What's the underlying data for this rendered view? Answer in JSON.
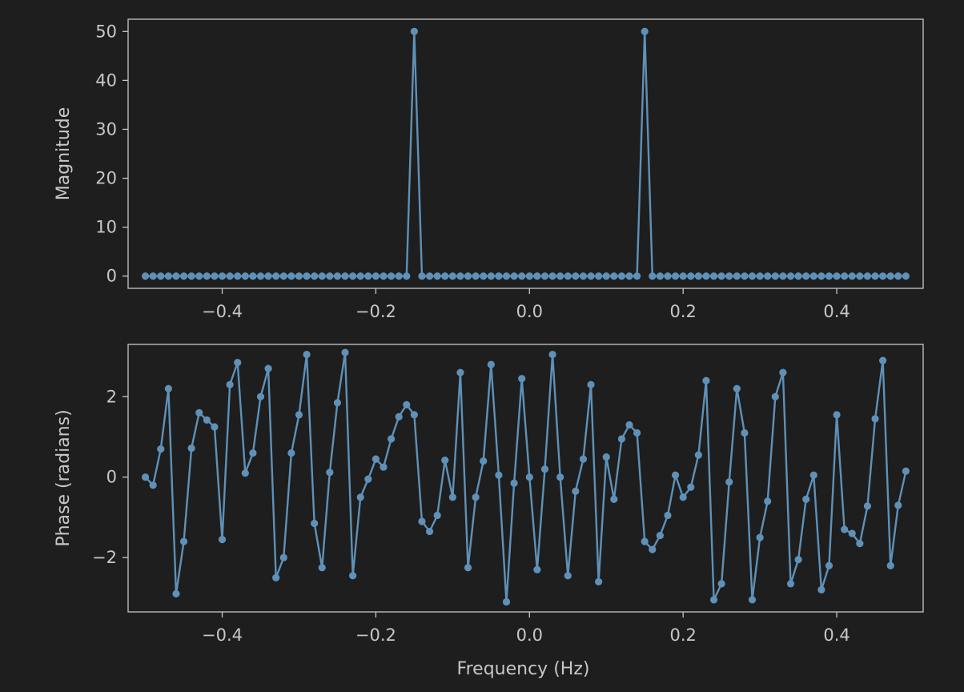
{
  "colors": {
    "background": "#1e1e1e",
    "series": "#5f91b8",
    "axes": "#c7c7c7"
  },
  "chart_data": [
    {
      "type": "line",
      "markers": true,
      "xlabel": "",
      "ylabel": "Magnitude",
      "xlim": [
        -0.5225,
        0.5125
      ],
      "ylim": [
        -2.5,
        52.5
      ],
      "xticks": [
        -0.4,
        -0.2,
        0.0,
        0.2,
        0.4
      ],
      "xtick_labels": [
        "−0.4",
        "−0.2",
        "0.0",
        "0.2",
        "0.4"
      ],
      "yticks": [
        0,
        10,
        20,
        30,
        40,
        50
      ],
      "ytick_labels": [
        "0",
        "10",
        "20",
        "30",
        "40",
        "50"
      ],
      "x_start": -0.5,
      "x_step": 0.01,
      "values": [
        0,
        0,
        0,
        0,
        0,
        0,
        0,
        0,
        0,
        0,
        0,
        0,
        0,
        0,
        0,
        0,
        0,
        0,
        0,
        0,
        0,
        0,
        0,
        0,
        0,
        0,
        0,
        0,
        0,
        0,
        0,
        0,
        0,
        0,
        0,
        50,
        0,
        0,
        0,
        0,
        0,
        0,
        0,
        0,
        0,
        0,
        0,
        0,
        0,
        0,
        0,
        0,
        0,
        0,
        0,
        0,
        0,
        0,
        0,
        0,
        0,
        0,
        0,
        0,
        0,
        50,
        0,
        0,
        0,
        0,
        0,
        0,
        0,
        0,
        0,
        0,
        0,
        0,
        0,
        0,
        0,
        0,
        0,
        0,
        0,
        0,
        0,
        0,
        0,
        0,
        0,
        0,
        0,
        0,
        0,
        0,
        0,
        0,
        0,
        0
      ]
    },
    {
      "type": "line",
      "markers": true,
      "xlabel": "Frequency (Hz)",
      "ylabel": "Phase (radians)",
      "xlim": [
        -0.5225,
        0.5125
      ],
      "ylim": [
        -3.35,
        3.3
      ],
      "xticks": [
        -0.4,
        -0.2,
        0.0,
        0.2,
        0.4
      ],
      "xtick_labels": [
        "−0.4",
        "−0.2",
        "0.0",
        "0.2",
        "0.4"
      ],
      "yticks": [
        -2,
        0,
        2
      ],
      "ytick_labels": [
        "−2",
        "0",
        "2"
      ],
      "x_start": -0.5,
      "x_step": 0.01,
      "values": [
        0.0,
        -0.2,
        0.7,
        2.2,
        -2.9,
        -1.6,
        0.72,
        1.6,
        1.42,
        1.25,
        -1.55,
        2.3,
        2.85,
        0.1,
        0.6,
        2.0,
        2.7,
        -2.5,
        -2.0,
        0.6,
        1.55,
        3.05,
        -1.15,
        -2.25,
        0.12,
        1.85,
        3.1,
        -2.45,
        -0.5,
        -0.05,
        0.45,
        0.25,
        0.95,
        1.5,
        1.8,
        1.55,
        -1.1,
        -1.35,
        -0.95,
        0.42,
        -0.5,
        2.6,
        -2.25,
        -0.5,
        0.4,
        2.8,
        0.05,
        -3.1,
        -0.15,
        2.45,
        0.0,
        -2.3,
        0.2,
        3.05,
        0.0,
        -2.45,
        -0.35,
        0.45,
        2.3,
        -2.6,
        0.5,
        -0.55,
        0.95,
        1.3,
        1.1,
        -1.6,
        -1.8,
        -1.45,
        -0.95,
        0.05,
        -0.5,
        -0.25,
        0.55,
        2.4,
        -3.05,
        -2.65,
        -0.12,
        2.2,
        1.1,
        -3.05,
        -1.5,
        -0.6,
        2.0,
        2.6,
        -2.65,
        -2.05,
        -0.55,
        0.05,
        -2.8,
        -2.2,
        1.55,
        -1.3,
        -1.4,
        -1.65,
        -0.72,
        1.45,
        2.9,
        -2.2,
        -0.7,
        0.15
      ]
    }
  ]
}
